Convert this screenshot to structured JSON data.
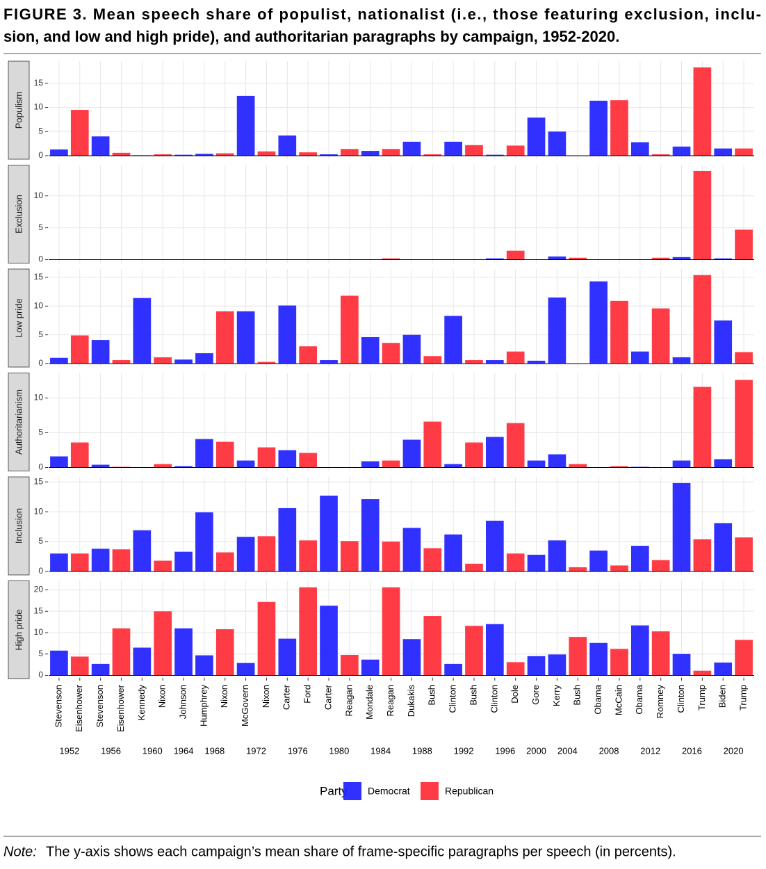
{
  "chart_data": {
    "title_lines": [
      "FIGURE 3.  Mean speech share of populist, nationalist (i.e., those featuring exclusion, inclu-",
      "sion, and low and high pride), and authoritarian paragraphs by campaign, 1952-2020."
    ],
    "groups": [
      {
        "year": "1952",
        "candidates": [
          "Stevenson",
          "Eisenhower"
        ]
      },
      {
        "year": "1956",
        "candidates": [
          "Stevenson",
          "Eisenhower"
        ]
      },
      {
        "year": "1960",
        "candidates": [
          "Kennedy",
          "Nixon"
        ]
      },
      {
        "year": "1964",
        "candidates": [
          "Johnson"
        ]
      },
      {
        "year": "1968",
        "candidates": [
          "Humphrey",
          "Nixon"
        ]
      },
      {
        "year": "1972",
        "candidates": [
          "McGovern",
          "Nixon"
        ]
      },
      {
        "year": "1976",
        "candidates": [
          "Carter",
          "Ford"
        ]
      },
      {
        "year": "1980",
        "candidates": [
          "Carter",
          "Reagan"
        ]
      },
      {
        "year": "1984",
        "candidates": [
          "Mondale",
          "Reagan"
        ]
      },
      {
        "year": "1988",
        "candidates": [
          "Dukakis",
          "Bush"
        ]
      },
      {
        "year": "1992",
        "candidates": [
          "Clinton",
          "Bush"
        ]
      },
      {
        "year": "1996",
        "candidates": [
          "Clinton",
          "Dole"
        ]
      },
      {
        "year": "2000",
        "candidates": [
          "Gore"
        ]
      },
      {
        "year": "2004",
        "candidates": [
          "Kerry",
          "Bush"
        ]
      },
      {
        "year": "2008",
        "candidates": [
          "Obama",
          "McCain"
        ]
      },
      {
        "year": "2012",
        "candidates": [
          "Obama",
          "Romney"
        ]
      },
      {
        "year": "2016",
        "candidates": [
          "Clinton",
          "Trump"
        ]
      },
      {
        "year": "2020",
        "candidates": [
          "Biden",
          "Trump"
        ]
      }
    ],
    "legend_title": "Party",
    "facets": [
      {
        "type": "bar",
        "label": "Populism",
        "ylim": [
          0,
          19.3
        ],
        "yticks": [
          0,
          5,
          10,
          15
        ],
        "grid": true,
        "series": [
          {
            "name": "Democrat",
            "color": "#1f1fff",
            "values": [
              1.3,
              null,
              4.0,
              null,
              0.1,
              null,
              0.2,
              0.4,
              null,
              12.4,
              null,
              4.2,
              null,
              0.3,
              null,
              1.0,
              null,
              2.9,
              null,
              2.9,
              null,
              0.2,
              null,
              7.9,
              5.0,
              null,
              11.4,
              null,
              2.8,
              null,
              1.9,
              null,
              1.5,
              null
            ]
          },
          {
            "name": "Republican",
            "color": "#ff2b36",
            "values": [
              null,
              9.5,
              null,
              0.6,
              null,
              0.3,
              null,
              null,
              0.5,
              null,
              0.9,
              null,
              0.7,
              null,
              1.4,
              null,
              1.4,
              null,
              0.3,
              null,
              2.2,
              null,
              2.1,
              null,
              null,
              0,
              null,
              11.5,
              null,
              0.3,
              null,
              18.3,
              null,
              1.5
            ]
          }
        ]
      },
      {
        "type": "bar",
        "label": "Exclusion",
        "ylim": [
          0,
          14.6
        ],
        "yticks": [
          0,
          5,
          10
        ],
        "grid": true,
        "series": [
          {
            "name": "Democrat",
            "color": "#1f1fff",
            "values": [
              0,
              null,
              0,
              null,
              0,
              null,
              0,
              0,
              null,
              0,
              null,
              0,
              null,
              0,
              null,
              0,
              null,
              0,
              null,
              0,
              null,
              0.2,
              null,
              0,
              0.5,
              null,
              0,
              null,
              0,
              null,
              0.4,
              null,
              0.2,
              null
            ]
          },
          {
            "name": "Republican",
            "color": "#ff2b36",
            "values": [
              null,
              0,
              null,
              0,
              null,
              0,
              null,
              null,
              0,
              null,
              0,
              null,
              0,
              null,
              0,
              null,
              0.2,
              null,
              0,
              null,
              0,
              null,
              1.4,
              null,
              null,
              0.3,
              null,
              0,
              null,
              0.3,
              null,
              13.9,
              null,
              4.7
            ]
          }
        ]
      },
      {
        "type": "bar",
        "label": "Low pride",
        "ylim": [
          0,
          16.2
        ],
        "yticks": [
          0,
          5,
          10,
          15
        ],
        "grid": true,
        "series": [
          {
            "name": "Democrat",
            "color": "#1f1fff",
            "values": [
              1.0,
              null,
              4.1,
              null,
              11.4,
              null,
              0.7,
              1.8,
              null,
              9.1,
              null,
              10.1,
              null,
              0.6,
              null,
              4.6,
              null,
              5.0,
              null,
              8.3,
              null,
              0.6,
              null,
              0.5,
              11.5,
              null,
              14.3,
              null,
              2.1,
              null,
              1.1,
              null,
              7.5,
              null
            ]
          },
          {
            "name": "Republican",
            "color": "#ff2b36",
            "values": [
              null,
              4.9,
              null,
              0.6,
              null,
              1.1,
              null,
              null,
              9.1,
              null,
              0.3,
              null,
              3.0,
              null,
              11.8,
              null,
              3.6,
              null,
              1.3,
              null,
              0.6,
              null,
              2.1,
              null,
              null,
              0,
              null,
              10.9,
              null,
              9.6,
              null,
              15.4,
              null,
              2.0
            ]
          }
        ]
      },
      {
        "type": "bar",
        "label": "Authoritarianism",
        "ylim": [
          0,
          13.4
        ],
        "yticks": [
          0,
          5,
          10
        ],
        "grid": true,
        "series": [
          {
            "name": "Democrat",
            "color": "#1f1fff",
            "values": [
              1.6,
              null,
              0.4,
              null,
              0,
              null,
              0.2,
              4.1,
              null,
              1.0,
              null,
              2.5,
              null,
              0,
              null,
              0.9,
              null,
              4.0,
              null,
              0.5,
              null,
              4.4,
              null,
              1.0,
              1.9,
              null,
              0,
              null,
              0.1,
              null,
              1.0,
              null,
              1.2,
              null
            ]
          },
          {
            "name": "Republican",
            "color": "#ff2b36",
            "values": [
              null,
              3.6,
              null,
              0.1,
              null,
              0.5,
              null,
              null,
              3.7,
              null,
              2.9,
              null,
              2.1,
              null,
              0,
              null,
              1.0,
              null,
              6.6,
              null,
              3.6,
              null,
              6.4,
              null,
              null,
              0.5,
              null,
              0.2,
              null,
              0,
              null,
              11.6,
              null,
              12.6
            ]
          }
        ]
      },
      {
        "type": "bar",
        "label": "Inclusion",
        "ylim": [
          0,
          15.6
        ],
        "yticks": [
          0,
          5,
          10,
          15
        ],
        "grid": true,
        "series": [
          {
            "name": "Democrat",
            "color": "#1f1fff",
            "values": [
              3.0,
              null,
              3.8,
              null,
              6.9,
              null,
              3.3,
              9.9,
              null,
              5.8,
              null,
              10.6,
              null,
              12.7,
              null,
              12.1,
              null,
              7.3,
              null,
              6.2,
              null,
              8.5,
              null,
              2.8,
              5.2,
              null,
              3.5,
              null,
              4.3,
              null,
              14.8,
              null,
              8.1,
              null
            ]
          },
          {
            "name": "Republican",
            "color": "#ff2b36",
            "values": [
              null,
              3.0,
              null,
              3.7,
              null,
              1.8,
              null,
              null,
              3.2,
              null,
              5.9,
              null,
              5.2,
              null,
              5.1,
              null,
              5.0,
              null,
              3.9,
              null,
              1.3,
              null,
              3.0,
              null,
              null,
              0.7,
              null,
              1.0,
              null,
              1.9,
              null,
              5.4,
              null,
              5.7
            ]
          }
        ]
      },
      {
        "type": "bar",
        "label": "High pride",
        "ylim": [
          0,
          21.8
        ],
        "yticks": [
          0,
          5,
          10,
          15,
          20
        ],
        "grid": true,
        "series": [
          {
            "name": "Democrat",
            "color": "#1f1fff",
            "values": [
              5.8,
              null,
              2.7,
              null,
              6.5,
              null,
              11.0,
              4.7,
              null,
              2.9,
              null,
              8.6,
              null,
              16.3,
              null,
              3.7,
              null,
              8.5,
              null,
              2.7,
              null,
              12.0,
              null,
              4.5,
              4.9,
              null,
              7.6,
              null,
              11.7,
              null,
              5.0,
              null,
              3.0,
              null
            ]
          },
          {
            "name": "Republican",
            "color": "#ff2b36",
            "values": [
              null,
              4.4,
              null,
              11.0,
              null,
              15.0,
              null,
              null,
              10.8,
              null,
              17.2,
              null,
              20.6,
              null,
              4.8,
              null,
              20.6,
              null,
              13.9,
              null,
              11.6,
              null,
              3.1,
              null,
              null,
              9.0,
              null,
              6.2,
              null,
              10.3,
              null,
              1.1,
              null,
              8.3
            ]
          }
        ]
      }
    ],
    "note_label": "Note:",
    "note": "The y-axis shows each campaign’s mean share of frame-specific paragraphs per speech (in percents)."
  }
}
